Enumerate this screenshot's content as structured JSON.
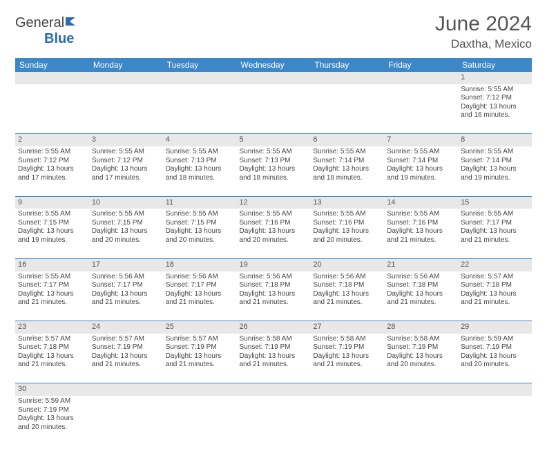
{
  "brand": {
    "general": "General",
    "blue": "Blue"
  },
  "header": {
    "month_title": "June 2024",
    "location": "Daxtha, Mexico"
  },
  "colors": {
    "header_bg": "#3b87c8",
    "header_text": "#ffffff",
    "daynum_bg": "#e8e8e8",
    "border": "#3b87c8",
    "text": "#444444",
    "brand_gray": "#444444",
    "brand_blue": "#2c6bb3"
  },
  "daynames": [
    "Sunday",
    "Monday",
    "Tuesday",
    "Wednesday",
    "Thursday",
    "Friday",
    "Saturday"
  ],
  "weeks": [
    {
      "nums": [
        "",
        "",
        "",
        "",
        "",
        "",
        "1"
      ],
      "cells": [
        null,
        null,
        null,
        null,
        null,
        null,
        {
          "sunrise": "5:55 AM",
          "sunset": "7:12 PM",
          "daylight": "13 hours and 16 minutes."
        }
      ]
    },
    {
      "nums": [
        "2",
        "3",
        "4",
        "5",
        "6",
        "7",
        "8"
      ],
      "cells": [
        {
          "sunrise": "5:55 AM",
          "sunset": "7:12 PM",
          "daylight": "13 hours and 17 minutes."
        },
        {
          "sunrise": "5:55 AM",
          "sunset": "7:12 PM",
          "daylight": "13 hours and 17 minutes."
        },
        {
          "sunrise": "5:55 AM",
          "sunset": "7:13 PM",
          "daylight": "13 hours and 18 minutes."
        },
        {
          "sunrise": "5:55 AM",
          "sunset": "7:13 PM",
          "daylight": "13 hours and 18 minutes."
        },
        {
          "sunrise": "5:55 AM",
          "sunset": "7:14 PM",
          "daylight": "13 hours and 18 minutes."
        },
        {
          "sunrise": "5:55 AM",
          "sunset": "7:14 PM",
          "daylight": "13 hours and 19 minutes."
        },
        {
          "sunrise": "5:55 AM",
          "sunset": "7:14 PM",
          "daylight": "13 hours and 19 minutes."
        }
      ]
    },
    {
      "nums": [
        "9",
        "10",
        "11",
        "12",
        "13",
        "14",
        "15"
      ],
      "cells": [
        {
          "sunrise": "5:55 AM",
          "sunset": "7:15 PM",
          "daylight": "13 hours and 19 minutes."
        },
        {
          "sunrise": "5:55 AM",
          "sunset": "7:15 PM",
          "daylight": "13 hours and 20 minutes."
        },
        {
          "sunrise": "5:55 AM",
          "sunset": "7:15 PM",
          "daylight": "13 hours and 20 minutes."
        },
        {
          "sunrise": "5:55 AM",
          "sunset": "7:16 PM",
          "daylight": "13 hours and 20 minutes."
        },
        {
          "sunrise": "5:55 AM",
          "sunset": "7:16 PM",
          "daylight": "13 hours and 20 minutes."
        },
        {
          "sunrise": "5:55 AM",
          "sunset": "7:16 PM",
          "daylight": "13 hours and 21 minutes."
        },
        {
          "sunrise": "5:55 AM",
          "sunset": "7:17 PM",
          "daylight": "13 hours and 21 minutes."
        }
      ]
    },
    {
      "nums": [
        "16",
        "17",
        "18",
        "19",
        "20",
        "21",
        "22"
      ],
      "cells": [
        {
          "sunrise": "5:55 AM",
          "sunset": "7:17 PM",
          "daylight": "13 hours and 21 minutes."
        },
        {
          "sunrise": "5:56 AM",
          "sunset": "7:17 PM",
          "daylight": "13 hours and 21 minutes."
        },
        {
          "sunrise": "5:56 AM",
          "sunset": "7:17 PM",
          "daylight": "13 hours and 21 minutes."
        },
        {
          "sunrise": "5:56 AM",
          "sunset": "7:18 PM",
          "daylight": "13 hours and 21 minutes."
        },
        {
          "sunrise": "5:56 AM",
          "sunset": "7:18 PM",
          "daylight": "13 hours and 21 minutes."
        },
        {
          "sunrise": "5:56 AM",
          "sunset": "7:18 PM",
          "daylight": "13 hours and 21 minutes."
        },
        {
          "sunrise": "5:57 AM",
          "sunset": "7:18 PM",
          "daylight": "13 hours and 21 minutes."
        }
      ]
    },
    {
      "nums": [
        "23",
        "24",
        "25",
        "26",
        "27",
        "28",
        "29"
      ],
      "cells": [
        {
          "sunrise": "5:57 AM",
          "sunset": "7:18 PM",
          "daylight": "13 hours and 21 minutes."
        },
        {
          "sunrise": "5:57 AM",
          "sunset": "7:19 PM",
          "daylight": "13 hours and 21 minutes."
        },
        {
          "sunrise": "5:57 AM",
          "sunset": "7:19 PM",
          "daylight": "13 hours and 21 minutes."
        },
        {
          "sunrise": "5:58 AM",
          "sunset": "7:19 PM",
          "daylight": "13 hours and 21 minutes."
        },
        {
          "sunrise": "5:58 AM",
          "sunset": "7:19 PM",
          "daylight": "13 hours and 21 minutes."
        },
        {
          "sunrise": "5:58 AM",
          "sunset": "7:19 PM",
          "daylight": "13 hours and 20 minutes."
        },
        {
          "sunrise": "5:59 AM",
          "sunset": "7:19 PM",
          "daylight": "13 hours and 20 minutes."
        }
      ]
    },
    {
      "nums": [
        "30",
        "",
        "",
        "",
        "",
        "",
        ""
      ],
      "cells": [
        {
          "sunrise": "5:59 AM",
          "sunset": "7:19 PM",
          "daylight": "13 hours and 20 minutes."
        },
        null,
        null,
        null,
        null,
        null,
        null
      ]
    }
  ],
  "labels": {
    "sunrise_prefix": "Sunrise: ",
    "sunset_prefix": "Sunset: ",
    "daylight_prefix": "Daylight: "
  }
}
